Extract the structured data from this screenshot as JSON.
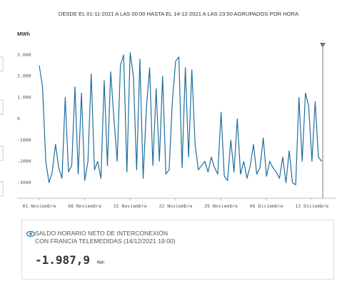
{
  "chart_data": {
    "type": "line",
    "title": "DESDE EL 01-11-2021 A LAS 00:00 HASTA EL 14-12-2021 A LAS 23:50 AGRUPADOS POR HORA",
    "y_label": "MWh",
    "color": "#1f6e9c",
    "x": [
      "01-11-2021 00:00",
      "01-11-2021 12:00",
      "02-11-2021 00:00",
      "02-11-2021 12:00",
      "03-11-2021 00:00",
      "03-11-2021 12:00",
      "04-11-2021 00:00",
      "04-11-2021 12:00",
      "05-11-2021 00:00",
      "05-11-2021 12:00",
      "06-11-2021 00:00",
      "06-11-2021 12:00",
      "07-11-2021 00:00",
      "07-11-2021 12:00",
      "08-11-2021 00:00",
      "08-11-2021 12:00",
      "09-11-2021 00:00",
      "09-11-2021 12:00",
      "10-11-2021 00:00",
      "10-11-2021 12:00",
      "11-11-2021 00:00",
      "11-11-2021 12:00",
      "12-11-2021 00:00",
      "12-11-2021 12:00",
      "13-11-2021 00:00",
      "13-11-2021 12:00",
      "14-11-2021 00:00",
      "14-11-2021 12:00",
      "15-11-2021 00:00",
      "15-11-2021 12:00",
      "16-11-2021 00:00",
      "16-11-2021 12:00",
      "17-11-2021 00:00",
      "17-11-2021 12:00",
      "18-11-2021 00:00",
      "18-11-2021 12:00",
      "19-11-2021 00:00",
      "19-11-2021 12:00",
      "20-11-2021 00:00",
      "20-11-2021 12:00",
      "21-11-2021 00:00",
      "21-11-2021 12:00",
      "22-11-2021 00:00",
      "22-11-2021 12:00",
      "23-11-2021 00:00",
      "23-11-2021 12:00",
      "24-11-2021 00:00",
      "24-11-2021 12:00",
      "25-11-2021 00:00",
      "25-11-2021 12:00",
      "26-11-2021 00:00",
      "26-11-2021 12:00",
      "27-11-2021 00:00",
      "27-11-2021 12:00",
      "28-11-2021 00:00",
      "28-11-2021 12:00",
      "29-11-2021 00:00",
      "29-11-2021 12:00",
      "30-11-2021 00:00",
      "30-11-2021 12:00",
      "01-12-2021 00:00",
      "01-12-2021 12:00",
      "02-12-2021 00:00",
      "02-12-2021 12:00",
      "03-12-2021 00:00",
      "03-12-2021 12:00",
      "04-12-2021 00:00",
      "04-12-2021 12:00",
      "05-12-2021 00:00",
      "05-12-2021 12:00",
      "06-12-2021 00:00",
      "06-12-2021 12:00",
      "07-12-2021 00:00",
      "07-12-2021 12:00",
      "08-12-2021 00:00",
      "08-12-2021 12:00",
      "09-12-2021 00:00",
      "09-12-2021 12:00",
      "10-12-2021 00:00",
      "10-12-2021 12:00",
      "11-12-2021 00:00",
      "11-12-2021 12:00",
      "12-12-2021 00:00",
      "12-12-2021 12:00",
      "13-12-2021 00:00",
      "13-12-2021 12:00",
      "14-12-2021 00:00",
      "14-12-2021 12:00"
    ],
    "values": [
      2500,
      1500,
      -2000,
      -3000,
      -2500,
      -1200,
      -2300,
      -2800,
      1000,
      -2500,
      -2200,
      1500,
      -2600,
      1200,
      -2900,
      -2000,
      2100,
      -2400,
      -2000,
      -2800,
      1800,
      -2200,
      2200,
      0,
      -2000,
      2500,
      3000,
      -2500,
      3100,
      2000,
      -2400,
      2800,
      -2800,
      500,
      2400,
      -2200,
      1400,
      -2000,
      2000,
      -2600,
      -2400,
      800,
      2700,
      2900,
      -2300,
      2400,
      -1800,
      2300,
      -1200,
      -2400,
      -2200,
      -2000,
      -2500,
      -1800,
      -2300,
      -2600,
      300,
      -2700,
      -2900,
      -1000,
      -2500,
      0,
      -2600,
      -2000,
      -2800,
      -2200,
      -1200,
      -2600,
      -2300,
      -900,
      -2700,
      -2000,
      -2300,
      -2500,
      -2800,
      -1800,
      -3000,
      -1500,
      -3000,
      -3100,
      1000,
      -2000,
      1200,
      600,
      -2000,
      800,
      -1800,
      -2000
    ],
    "xlim": [
      "01-11-2021 00:00",
      "14-12-2021 23:50"
    ],
    "xticks": [
      {
        "value": "01-11-2021 00:00",
        "label": "01 Noviembre"
      },
      {
        "value": "08-11-2021 00:00",
        "label": "08 Noviembre"
      },
      {
        "value": "15-11-2021 00:00",
        "label": "15 Noviembre"
      },
      {
        "value": "22-11-2021 00:00",
        "label": "22 Noviembre"
      },
      {
        "value": "29-11-2021 00:00",
        "label": "29 Noviembre"
      },
      {
        "value": "06-12-2021 00:00",
        "label": "06 Diciembre"
      },
      {
        "value": "13-12-2021 00:00",
        "label": "13 Diciembre"
      }
    ],
    "ylim": [
      -3700,
      4000
    ],
    "yticks": [
      {
        "value": 3000,
        "label": "3.000"
      },
      {
        "value": 2000,
        "label": "2.000"
      },
      {
        "value": 1000,
        "label": "1.000"
      },
      0,
      -1000,
      -2000,
      -3000
    ],
    "grid": false
  },
  "readout": {
    "label": "SALDO HORARIO NETO DE INTERCONEXIÓN CON FRANCIA TELEMEDIDAS (14/12/2021 19:00)",
    "value": "-1.987,9",
    "unit": "MWh"
  }
}
